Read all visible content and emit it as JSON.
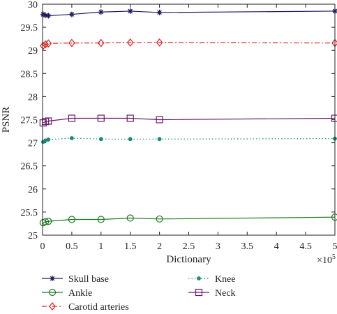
{
  "chart_data": {
    "type": "line",
    "xlabel": "Dictionary",
    "ylabel": "PSNR",
    "x_multiplier": "×10",
    "x_multiplier_exp": "5",
    "xlim": [
      0,
      5
    ],
    "ylim": [
      25,
      30
    ],
    "x_ticks": [
      0,
      0.5,
      1,
      1.5,
      2,
      2.5,
      3,
      3.5,
      4,
      4.5,
      5
    ],
    "x_tick_labels": [
      "0",
      "0.5",
      "1",
      "1.5",
      "2",
      "2.5",
      "3",
      "3.5",
      "4",
      "4.5",
      "5"
    ],
    "y_ticks": [
      25,
      25.5,
      26,
      26.5,
      27,
      27.5,
      28,
      28.5,
      29,
      29.5,
      30
    ],
    "y_tick_labels": [
      "25",
      "25.5",
      "26",
      "26.5",
      "27",
      "27.5",
      "28",
      "28.5",
      "29",
      "29.5",
      "30"
    ],
    "grid": false,
    "legend_position": "bottom",
    "series": [
      {
        "name": "Skull base",
        "color": "#1a1a5e",
        "marker": "star",
        "dash": "",
        "x": [
          0.01,
          0.05,
          0.1,
          0.5,
          1,
          1.5,
          2,
          5
        ],
        "y": [
          29.78,
          29.76,
          29.75,
          29.78,
          29.83,
          29.85,
          29.82,
          29.85
        ]
      },
      {
        "name": "Ankle",
        "color": "#1e7a1e",
        "marker": "circle",
        "dash": "",
        "x": [
          0.01,
          0.05,
          0.1,
          0.5,
          1,
          1.5,
          2,
          5
        ],
        "y": [
          25.27,
          25.29,
          25.3,
          25.34,
          25.34,
          25.37,
          25.35,
          25.39
        ]
      },
      {
        "name": "Carotid arteries",
        "color": "#e02020",
        "marker": "diamond",
        "dash": "7,3,2,3",
        "x": [
          0.01,
          0.05,
          0.1,
          0.5,
          1,
          1.5,
          2,
          5
        ],
        "y": [
          29.1,
          29.13,
          29.15,
          29.16,
          29.16,
          29.17,
          29.17,
          29.16
        ]
      },
      {
        "name": "Knee",
        "color": "#1a8a7a",
        "marker": "dot",
        "dash": "1.5,3",
        "x": [
          0.01,
          0.05,
          0.1,
          0.5,
          1,
          1.5,
          2,
          5
        ],
        "y": [
          27.02,
          27.05,
          27.07,
          27.1,
          27.08,
          27.08,
          27.08,
          27.09
        ]
      },
      {
        "name": "Neck",
        "color": "#6a1b6a",
        "marker": "square",
        "dash": "",
        "x": [
          0.01,
          0.05,
          0.1,
          0.5,
          1,
          1.5,
          2,
          5
        ],
        "y": [
          27.43,
          27.46,
          27.47,
          27.53,
          27.53,
          27.53,
          27.5,
          27.53
        ]
      }
    ]
  }
}
